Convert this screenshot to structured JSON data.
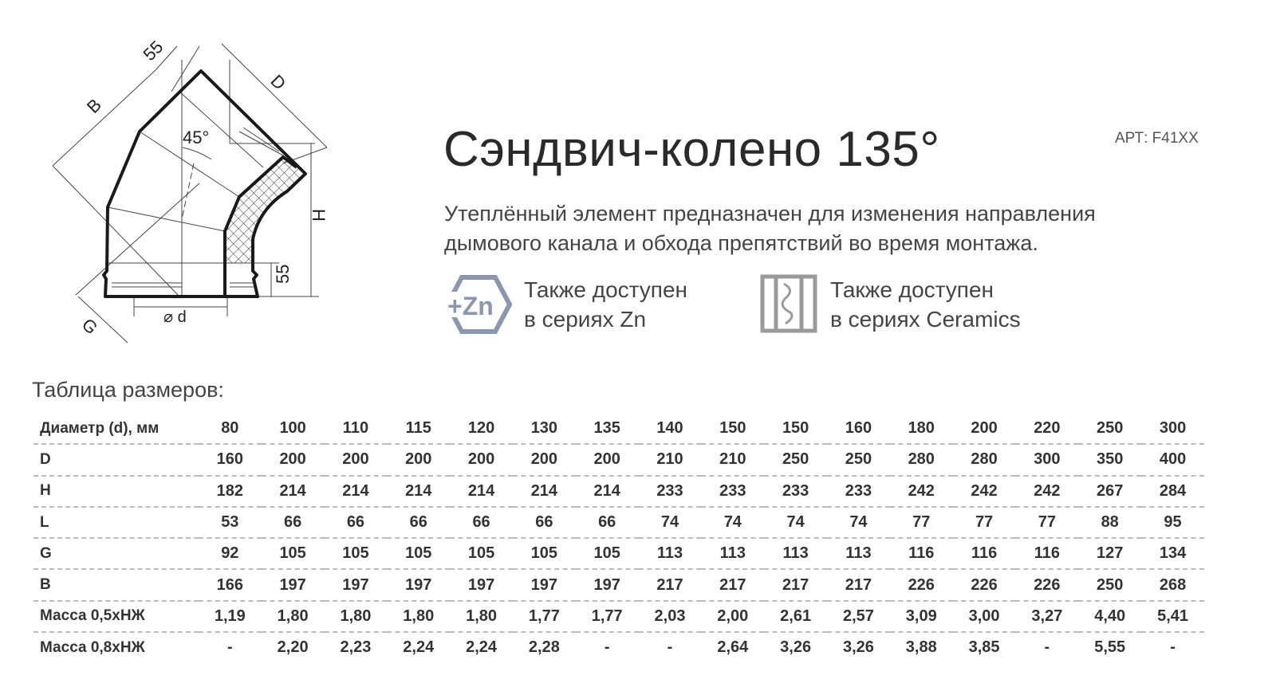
{
  "drawing": {
    "labels": {
      "b": "B",
      "top55": "55",
      "d_upper": "D",
      "angle": "45°",
      "h": "H",
      "bottom55": "55",
      "diameter": "⌀ d",
      "g": "G"
    }
  },
  "header": {
    "title": "Сэндвич-колено 135°",
    "article": "АРТ: F41XX"
  },
  "description": [
    "Утеплённый элемент предназначен для изменения направления",
    "дымового канала и обхода препятствий во время монтажа."
  ],
  "availability": [
    {
      "icon": "zinc-icon",
      "icon_text": "+Zn",
      "line1": "Также доступен",
      "line2": "в сериях Zn",
      "color": "#8a97b0"
    },
    {
      "icon": "ceramics-icon",
      "line1": "Также доступен",
      "line2": "в сериях Ceramics",
      "color": "#9a9a9a"
    }
  ],
  "table": {
    "caption": "Таблица размеров:",
    "rows": [
      {
        "label": "Диаметр (d), мм",
        "values": [
          "80",
          "100",
          "110",
          "115",
          "120",
          "130",
          "135",
          "140",
          "150",
          "150",
          "160",
          "180",
          "200",
          "220",
          "250",
          "300"
        ]
      },
      {
        "label": "D",
        "values": [
          "160",
          "200",
          "200",
          "200",
          "200",
          "200",
          "200",
          "210",
          "210",
          "250",
          "250",
          "280",
          "280",
          "300",
          "350",
          "400"
        ]
      },
      {
        "label": "H",
        "values": [
          "182",
          "214",
          "214",
          "214",
          "214",
          "214",
          "214",
          "233",
          "233",
          "233",
          "233",
          "242",
          "242",
          "242",
          "267",
          "284"
        ]
      },
      {
        "label": "L",
        "values": [
          "53",
          "66",
          "66",
          "66",
          "66",
          "66",
          "66",
          "74",
          "74",
          "74",
          "74",
          "77",
          "77",
          "77",
          "88",
          "95"
        ]
      },
      {
        "label": "G",
        "values": [
          "92",
          "105",
          "105",
          "105",
          "105",
          "105",
          "105",
          "113",
          "113",
          "113",
          "113",
          "116",
          "116",
          "116",
          "127",
          "134"
        ]
      },
      {
        "label": "B",
        "values": [
          "166",
          "197",
          "197",
          "197",
          "197",
          "197",
          "197",
          "217",
          "217",
          "217",
          "217",
          "226",
          "226",
          "226",
          "250",
          "268"
        ]
      },
      {
        "label": "Масса 0,5хНЖ",
        "values": [
          "1,19",
          "1,80",
          "1,80",
          "1,80",
          "1,80",
          "1,77",
          "1,77",
          "2,03",
          "2,00",
          "2,61",
          "2,57",
          "3,09",
          "3,00",
          "3,27",
          "4,40",
          "5,41"
        ]
      },
      {
        "label": "Масса 0,8хНЖ",
        "values": [
          "-",
          "2,20",
          "2,23",
          "2,24",
          "2,24",
          "2,28",
          "-",
          "-",
          "2,64",
          "3,26",
          "3,26",
          "3,88",
          "3,85",
          "-",
          "5,55",
          "-"
        ]
      }
    ]
  }
}
